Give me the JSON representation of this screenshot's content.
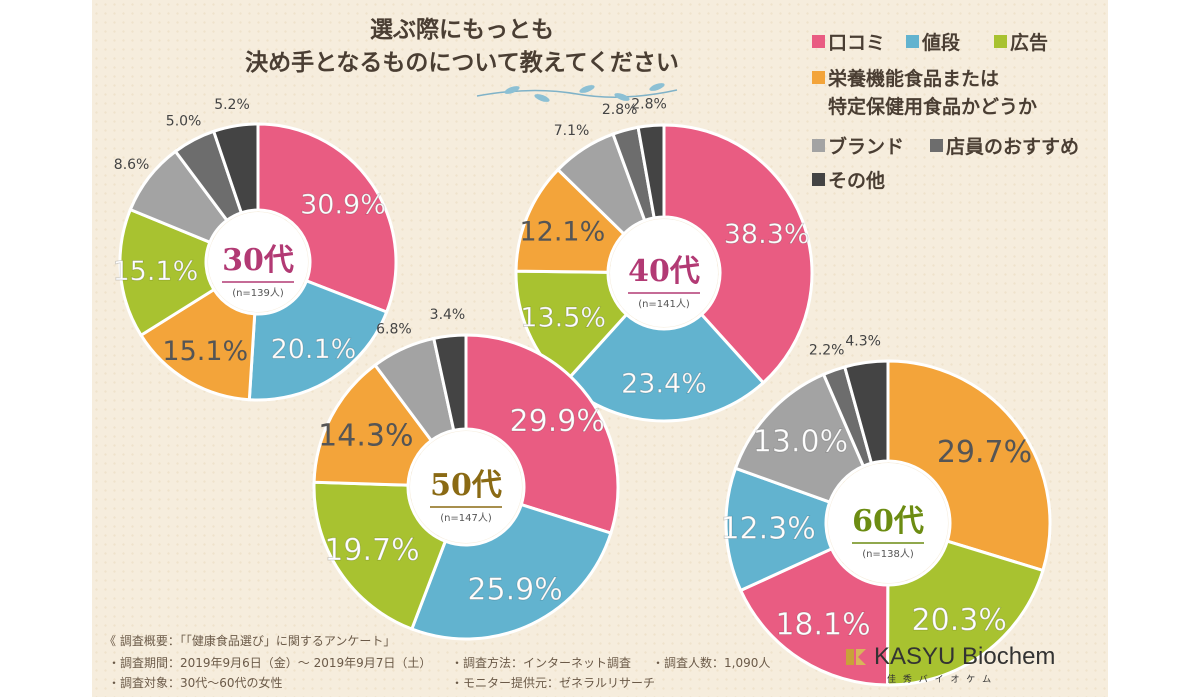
{
  "title": {
    "line1": "選ぶ際にもっとも",
    "line2": "決め手となるものについて教えてください"
  },
  "legend": [
    {
      "label": "口コミ",
      "color": "#e95c82"
    },
    {
      "label": "値段",
      "color": "#62b3cf"
    },
    {
      "label": "広告",
      "color": "#a8c230"
    },
    {
      "label": "栄養機能食品または",
      "color": "#f3a43a"
    },
    {
      "label": "特定保健用食品かどうか",
      "color": ""
    },
    {
      "label": "ブランド",
      "color": "#a3a3a3"
    },
    {
      "label": "店員のおすすめ",
      "color": "#6d6d6d"
    },
    {
      "label": "その他",
      "color": "#444444"
    }
  ],
  "chart_data": [
    {
      "type": "pie",
      "center_label": "30代",
      "center_sub": "(n=139人)",
      "label_color": "#b23a74",
      "slices": [
        {
          "category": "口コミ",
          "value": 30.9,
          "label": "30.9%"
        },
        {
          "category": "値段",
          "value": 20.1,
          "label": "20.1%"
        },
        {
          "category": "栄養機能食品または特定保健用食品かどうか",
          "value": 15.1,
          "label": "15.1%"
        },
        {
          "category": "広告",
          "value": 15.1,
          "label": "15.1%"
        },
        {
          "category": "ブランド",
          "value": 8.6,
          "label": "8.6%"
        },
        {
          "category": "店員のおすすめ",
          "value": 5.0,
          "label": "5.0%"
        },
        {
          "category": "その他",
          "value": 5.2,
          "label": "5.2%"
        }
      ]
    },
    {
      "type": "pie",
      "center_label": "40代",
      "center_sub": "(n=141人)",
      "label_color": "#b23a74",
      "slices": [
        {
          "category": "口コミ",
          "value": 38.3,
          "label": "38.3%"
        },
        {
          "category": "値段",
          "value": 23.4,
          "label": "23.4%"
        },
        {
          "category": "広告",
          "value": 13.5,
          "label": "13.5%"
        },
        {
          "category": "栄養機能食品または特定保健用食品かどうか",
          "value": 12.1,
          "label": "12.1%"
        },
        {
          "category": "ブランド",
          "value": 7.1,
          "label": "7.1%"
        },
        {
          "category": "店員のおすすめ",
          "value": 2.8,
          "label": "2.8%"
        },
        {
          "category": "その他",
          "value": 2.8,
          "label": "2.8%"
        }
      ]
    },
    {
      "type": "pie",
      "center_label": "50代",
      "center_sub": "(n=147人)",
      "label_color": "#8a6a14",
      "slices": [
        {
          "category": "口コミ",
          "value": 29.9,
          "label": "29.9%"
        },
        {
          "category": "値段",
          "value": 25.9,
          "label": "25.9%"
        },
        {
          "category": "広告",
          "value": 19.7,
          "label": "19.7%"
        },
        {
          "category": "栄養機能食品または特定保健用食品かどうか",
          "value": 14.3,
          "label": "14.3%"
        },
        {
          "category": "ブランド",
          "value": 6.8,
          "label": "6.8%"
        },
        {
          "category": "その他",
          "value": 3.4,
          "label": "3.4%"
        }
      ]
    },
    {
      "type": "pie",
      "center_label": "60代",
      "center_sub": "(n=138人)",
      "label_color": "#6c8c12",
      "slices": [
        {
          "category": "栄養機能食品または特定保健用食品かどうか",
          "value": 29.7,
          "label": "29.7%"
        },
        {
          "category": "広告",
          "value": 20.3,
          "label": "20.3%"
        },
        {
          "category": "口コミ",
          "value": 18.1,
          "label": "18.1%"
        },
        {
          "category": "値段",
          "value": 12.3,
          "label": "12.3%"
        },
        {
          "category": "ブランド",
          "value": 13.0,
          "label": "13.0%"
        },
        {
          "category": "店員のおすすめ",
          "value": 2.2,
          "label": "2.2%"
        },
        {
          "category": "その他",
          "value": 4.3,
          "label": "4.3%"
        }
      ]
    }
  ],
  "colors": {
    "口コミ": "#e95c82",
    "値段": "#62b3cf",
    "広告": "#a8c230",
    "栄養機能食品または特定保健用食品かどうか": "#f3a43a",
    "ブランド": "#a3a3a3",
    "店員のおすすめ": "#6d6d6d",
    "その他": "#444444"
  },
  "footer": {
    "heading": "《 調査概要：「「健康食品選び」に関するアンケート」",
    "period": "・調査期間：2019年9月6日（金）～ 2019年9月7日（土）",
    "target": "・調査対象：30代～60代の女性",
    "method": "・調査方法：インターネット調査",
    "count": "・調査人数：1,090人",
    "monitor": "・モニター提供元：ゼネラルリサーチ"
  },
  "logo": {
    "name": "KASYU Biochem",
    "sub": "佳 秀 バ イ オ ケ ム"
  }
}
